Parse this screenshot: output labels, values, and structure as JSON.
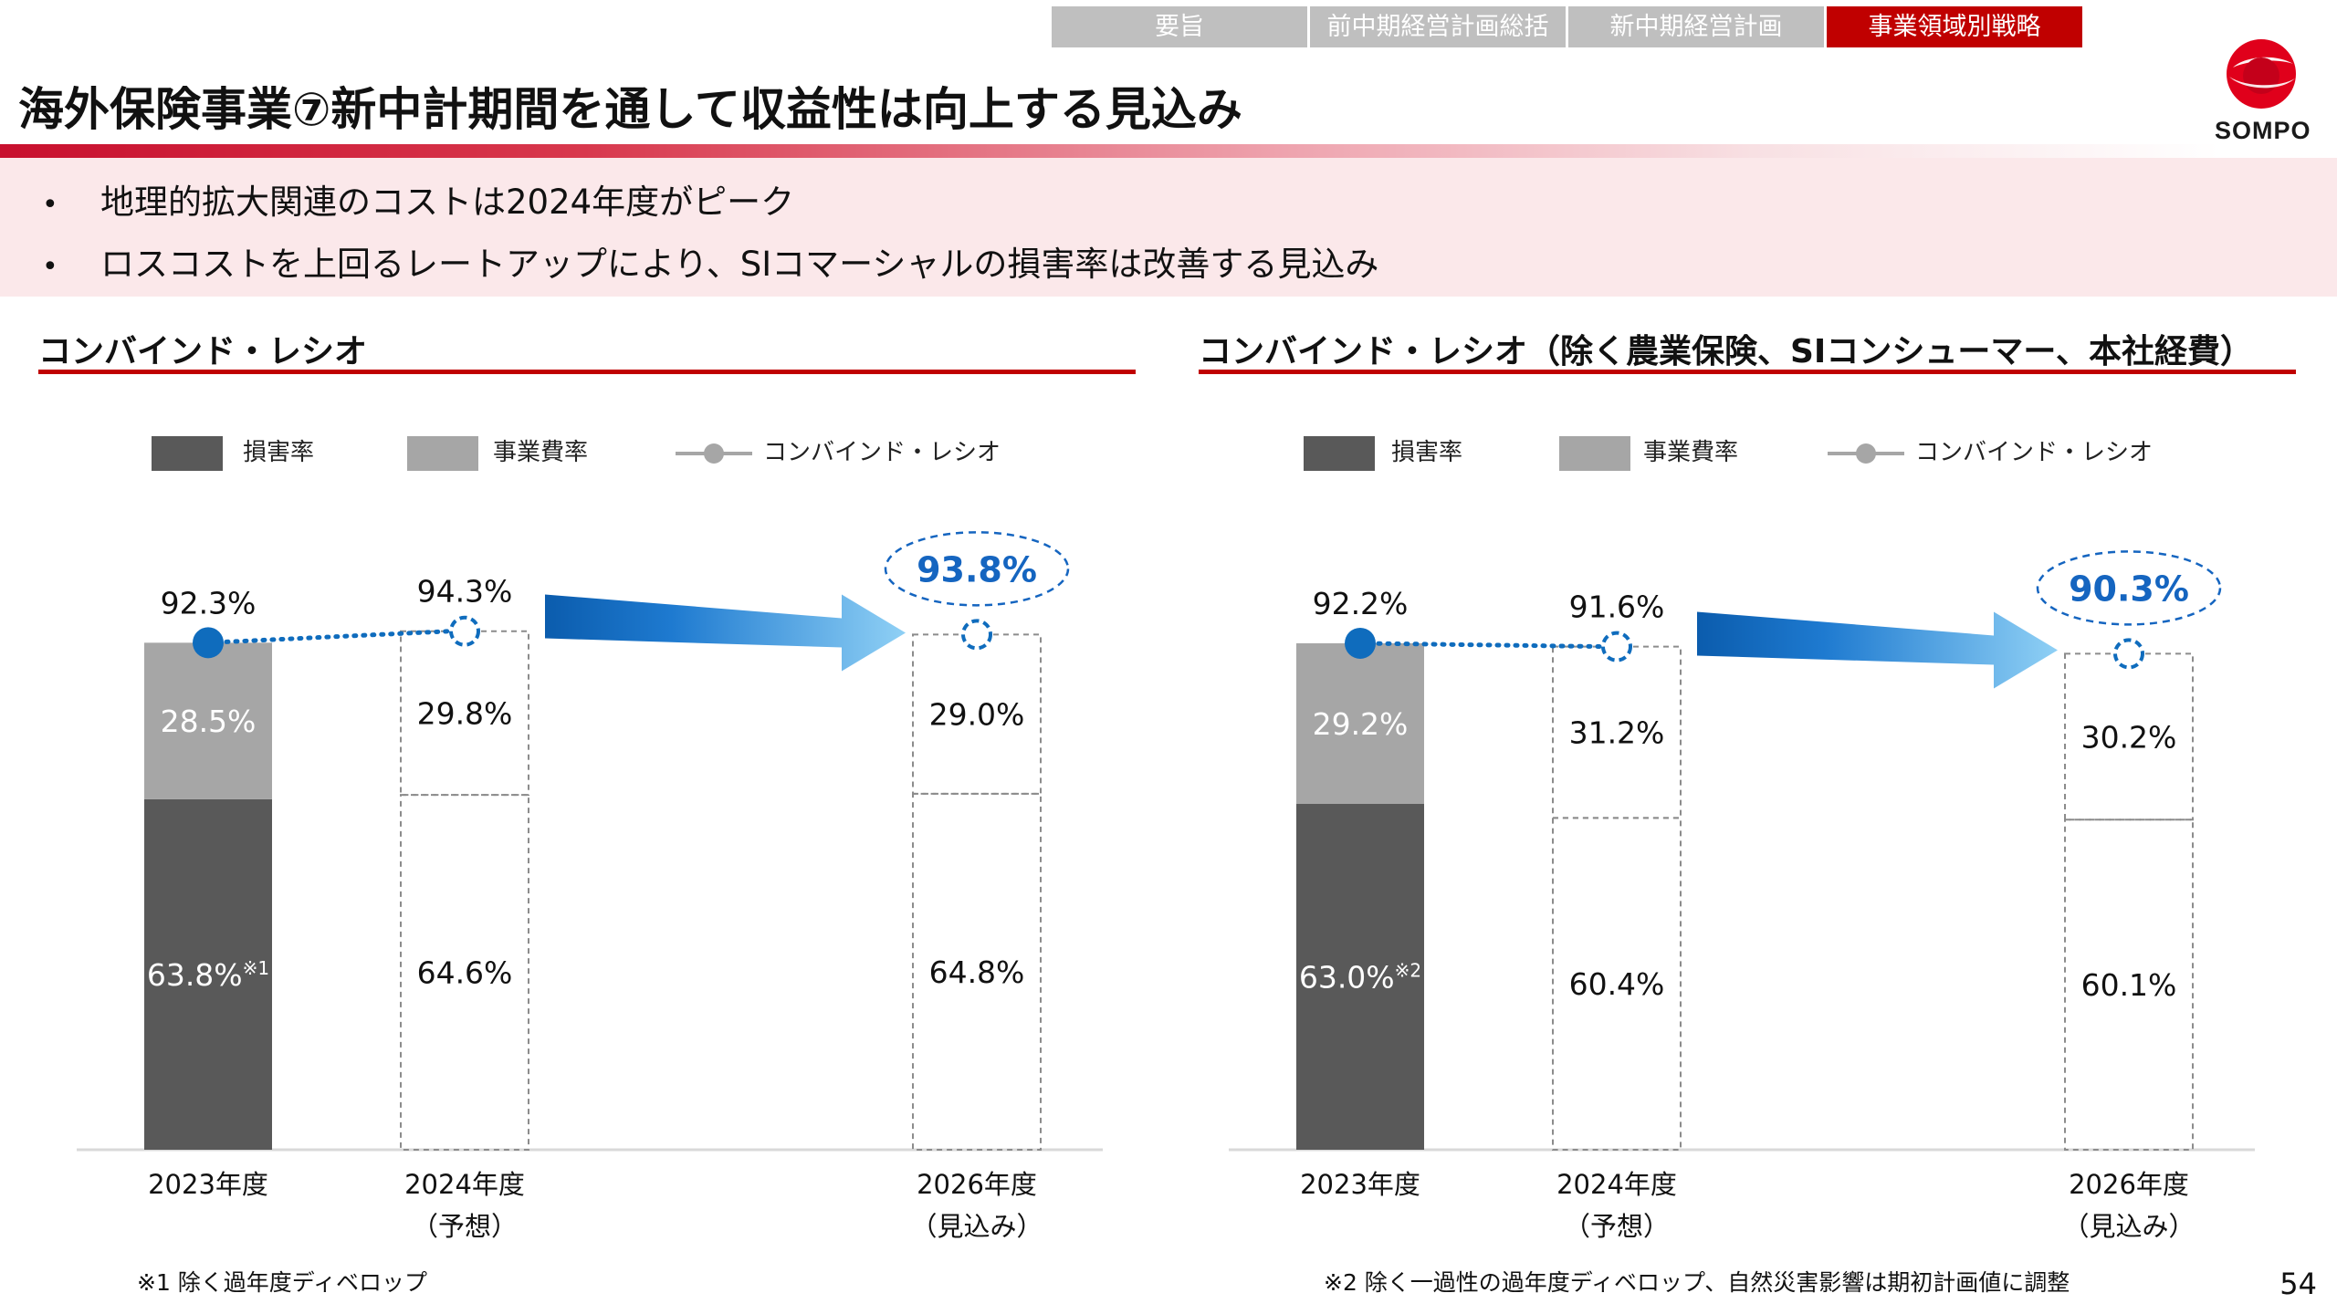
{
  "nav": {
    "tabs": [
      {
        "label": "要旨",
        "width": 280,
        "active": false
      },
      {
        "label": "前中期経営計画総括",
        "width": 280,
        "active": false
      },
      {
        "label": "新中期経営計画",
        "width": 280,
        "active": false
      },
      {
        "label": "事業領域別戦略",
        "width": 280,
        "active": true
      }
    ]
  },
  "logo": {
    "text": "SOMPO"
  },
  "header": {
    "title": "海外保険事業⑦新中計期間を通して収益性は向上する見込み"
  },
  "bullets": [
    {
      "bullet": "•",
      "text": "地理的拡大関連のコストは2024年度がピーク"
    },
    {
      "bullet": "•",
      "text": "ロスコストを上回るレートアップにより、SIコマーシャルの損害率は改善する見込み"
    }
  ],
  "legend": {
    "loss_ratio": "損害率",
    "expense_ratio": "事業費率",
    "combined_ratio": "コンバインド・レシオ"
  },
  "colors": {
    "loss": "#595959",
    "expense": "#a6a6a6",
    "combined_actual": "#0f6cbd",
    "highlight": "#1565c0",
    "accent_red": "#c00000"
  },
  "chart_data": [
    {
      "type": "bar",
      "title": "コンバインド・レシオ",
      "categories": [
        {
          "year": "2023年度",
          "note": ""
        },
        {
          "year": "2024年度",
          "note": "（予想）"
        },
        {
          "year": "2026年度",
          "note": "（見込み）"
        }
      ],
      "series": [
        {
          "name": "損害率",
          "values": [
            63.8,
            64.6,
            64.8
          ],
          "labels": [
            "63.8%",
            "64.6%",
            "64.8%"
          ]
        },
        {
          "name": "事業費率",
          "values": [
            28.5,
            29.8,
            29.0
          ],
          "labels": [
            "28.5%",
            "29.8%",
            "29.0%"
          ]
        },
        {
          "name": "コンバインド・レシオ",
          "values": [
            92.3,
            94.3,
            93.8
          ],
          "labels": [
            "92.3%",
            "94.3%",
            "93.8%"
          ]
        }
      ],
      "first_bar_footnote_mark": "※1",
      "bar_style": [
        "solid",
        "dashed-outline",
        "dashed-outline"
      ],
      "highlight_label": "93.8%",
      "footnote": "※1 除く過年度ディベロップ"
    },
    {
      "type": "bar",
      "title": "コンバインド・レシオ（除く農業保険、SIコンシューマー、本社経費）",
      "categories": [
        {
          "year": "2023年度",
          "note": ""
        },
        {
          "year": "2024年度",
          "note": "（予想）"
        },
        {
          "year": "2026年度",
          "note": "（見込み）"
        }
      ],
      "series": [
        {
          "name": "損害率",
          "values": [
            63.0,
            60.4,
            60.1
          ],
          "labels": [
            "63.0%",
            "60.4%",
            "60.1%"
          ]
        },
        {
          "name": "事業費率",
          "values": [
            29.2,
            31.2,
            30.2
          ],
          "labels": [
            "29.2%",
            "31.2%",
            "30.2%"
          ]
        },
        {
          "name": "コンバインド・レシオ",
          "values": [
            92.2,
            91.6,
            90.3
          ],
          "labels": [
            "92.2%",
            "91.6%",
            "90.3%"
          ]
        }
      ],
      "first_bar_footnote_mark": "※2",
      "bar_style": [
        "solid",
        "dashed-outline",
        "dashed-outline"
      ],
      "highlight_label": "90.3%",
      "footnote": "※2  除く一過性の過年度ディベロップ、自然災害影響は期初計画値に調整"
    }
  ],
  "page_number": "54"
}
